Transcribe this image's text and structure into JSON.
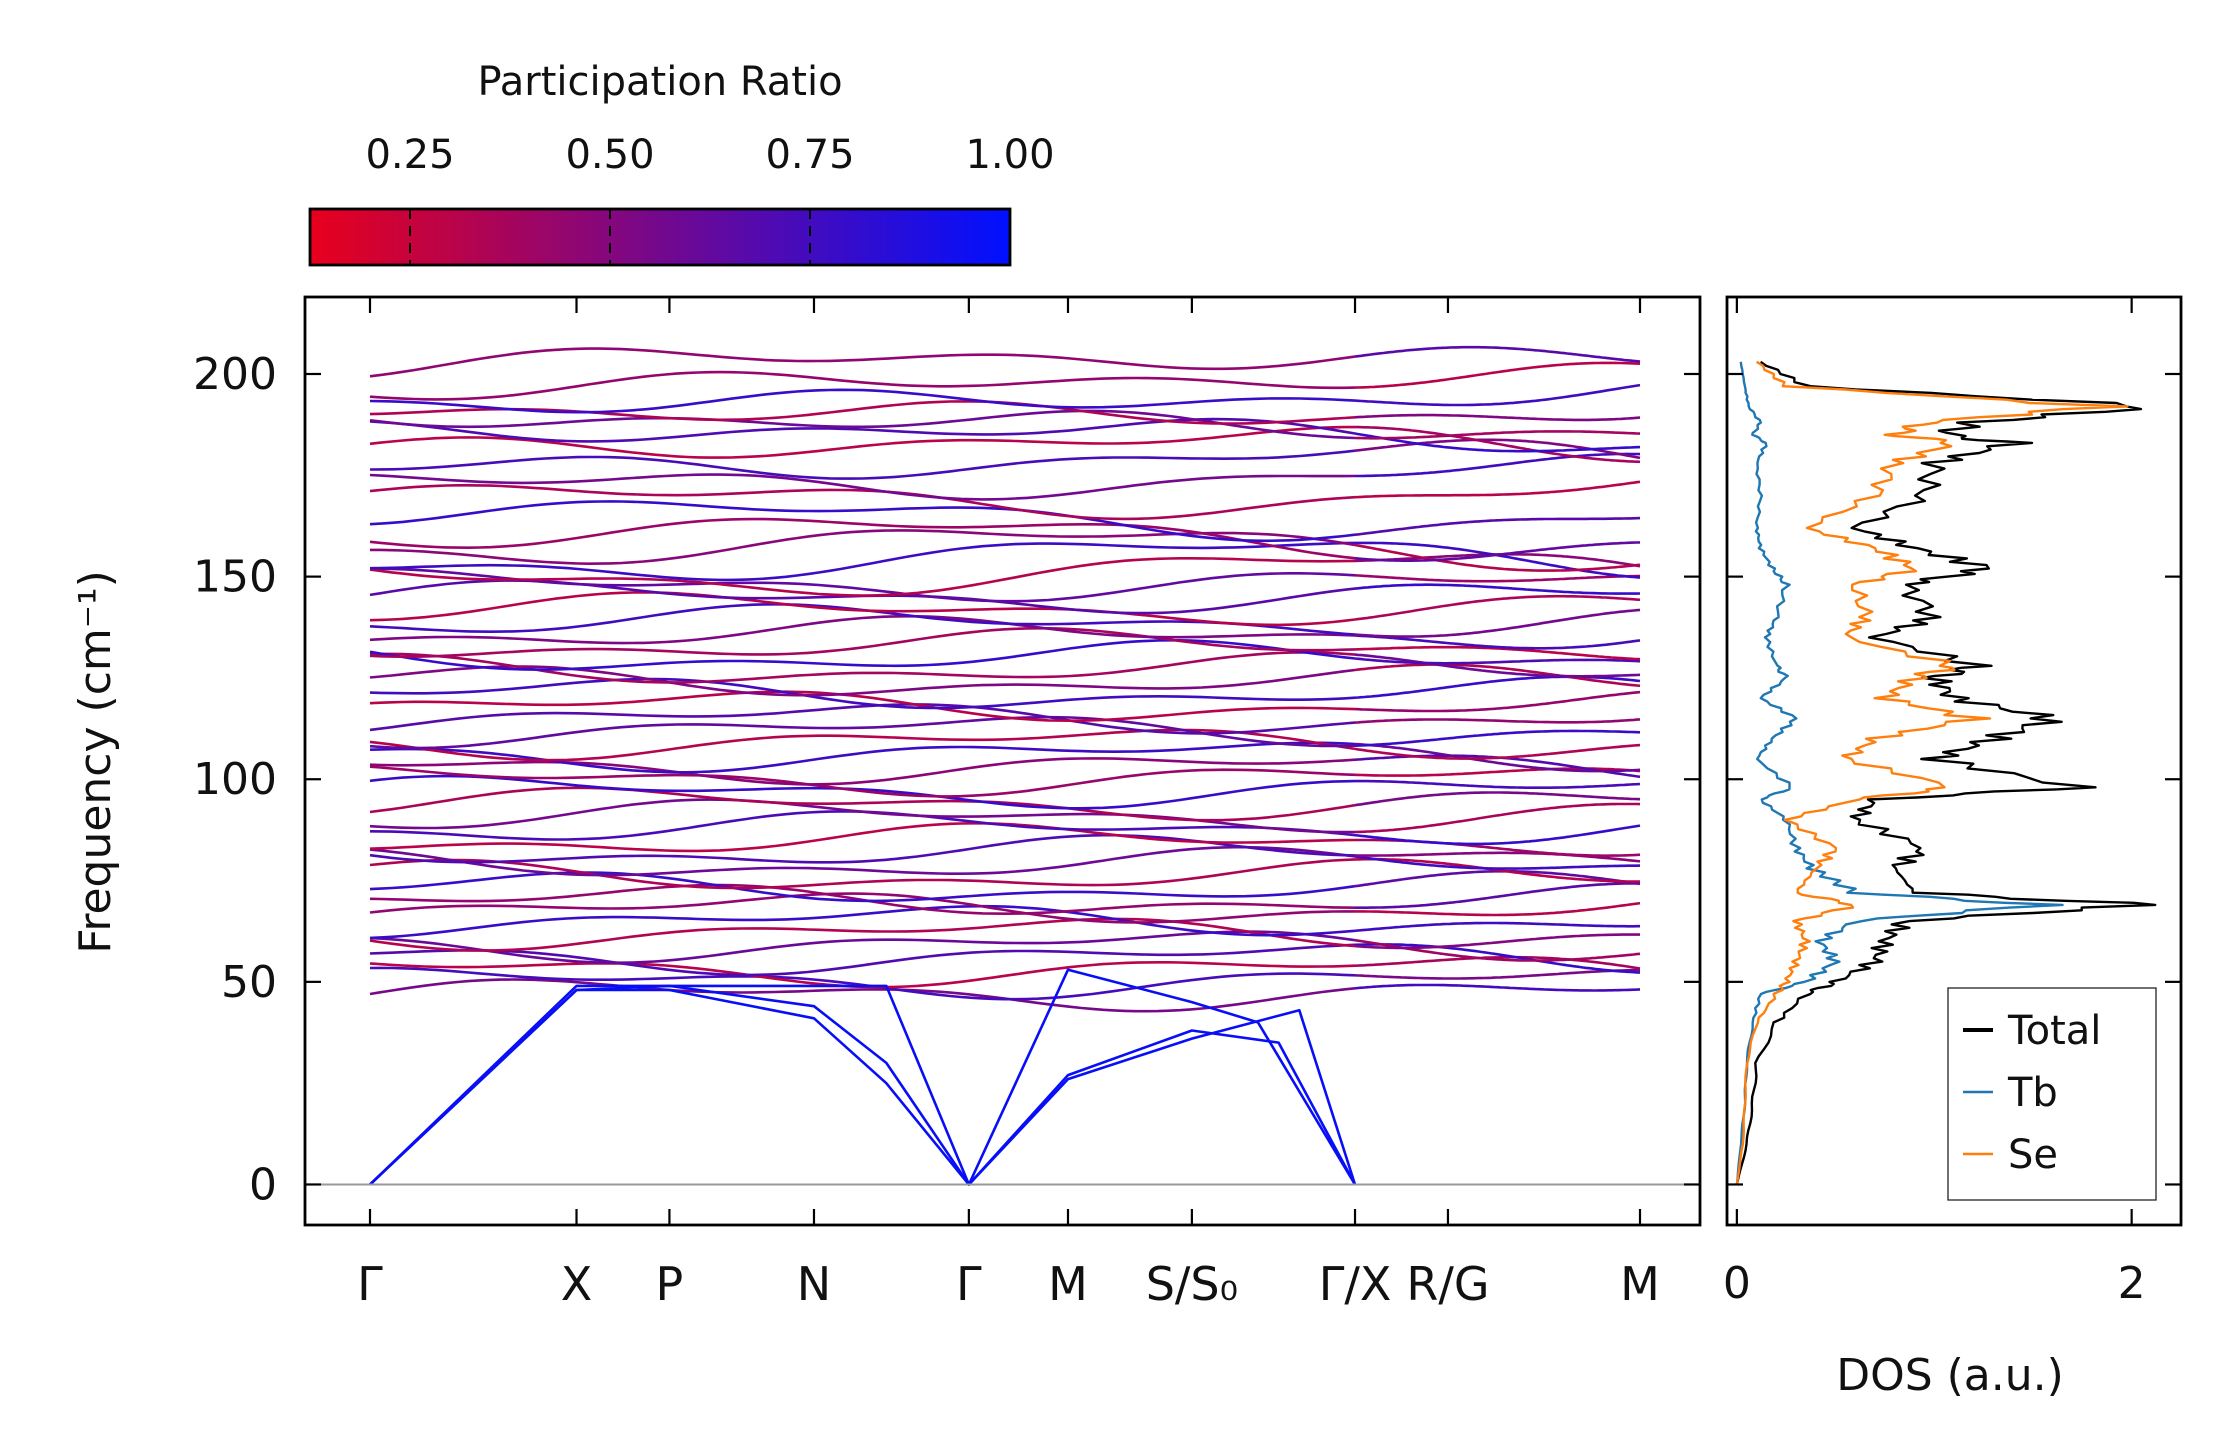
{
  "colorbar": {
    "title": "Participation Ratio",
    "ticks": [
      "0.25",
      "0.50",
      "0.75",
      "1.00"
    ],
    "tick_values": [
      0.25,
      0.5,
      0.75,
      1.0
    ],
    "range": [
      0.125,
      1.0
    ],
    "color_low": "#e8001c",
    "color_high": "#0010ff"
  },
  "chart_data": [
    {
      "type": "line",
      "name": "phonon-dispersion",
      "ylabel": "Frequency (cm⁻¹)",
      "ylim": [
        -10,
        219
      ],
      "yticks": [
        0,
        50,
        100,
        150,
        200
      ],
      "path_labels": [
        "Γ",
        "X",
        "P",
        "N",
        "Γ",
        "M",
        "S/S₀",
        "Γ/X",
        "R/G",
        "M"
      ],
      "path_positions": [
        0,
        1.0,
        1.45,
        2.15,
        2.9,
        3.38,
        3.98,
        4.77,
        5.22,
        6.15
      ],
      "acoustic_branches": [
        {
          "name": "acoustic-1",
          "x": [
            0,
            1.0,
            1.45,
            2.15,
            2.5,
            2.9,
            3.38,
            3.98,
            4.3,
            4.77
          ],
          "y": [
            0,
            48,
            49,
            44,
            30,
            0,
            53,
            45,
            40,
            0
          ]
        },
        {
          "name": "acoustic-2",
          "x": [
            0,
            1.0,
            1.45,
            2.15,
            2.5,
            2.9,
            3.38,
            3.98,
            4.4,
            4.77
          ],
          "y": [
            0,
            48,
            48,
            41,
            25,
            0,
            27,
            38,
            35,
            0
          ]
        },
        {
          "name": "acoustic-3",
          "x": [
            0,
            1.0,
            1.45,
            2.15,
            2.5,
            2.9,
            3.38,
            3.98,
            4.5,
            4.77
          ],
          "y": [
            0,
            49,
            49,
            49,
            49,
            0,
            26,
            36,
            43,
            0
          ]
        }
      ],
      "optical_band_levels": [
        47,
        50,
        53,
        56,
        59,
        62,
        65,
        68,
        70,
        73,
        76,
        79,
        82,
        85,
        88,
        91,
        94,
        97,
        100,
        103,
        106,
        109,
        112,
        115,
        118,
        121,
        124,
        127,
        130,
        133,
        136,
        139,
        142,
        145,
        148,
        151,
        154,
        157,
        160,
        165,
        170,
        174,
        178,
        182,
        185,
        188,
        191,
        194,
        198,
        203
      ]
    },
    {
      "type": "line",
      "name": "density-of-states",
      "xlabel": "DOS (a.u.)",
      "xlim": [
        -0.05,
        2.25
      ],
      "xticks": [
        0,
        2
      ],
      "ylim": [
        -10,
        219
      ],
      "legend_position": "lower-right",
      "series": [
        {
          "name": "Total",
          "color": "#000000",
          "freq": [
            0,
            10,
            20,
            30,
            40,
            47,
            50,
            55,
            60,
            65,
            69,
            72,
            78,
            83,
            90,
            95,
            98,
            105,
            110,
            115,
            120,
            125,
            128,
            135,
            140,
            148,
            152,
            157,
            162,
            170,
            178,
            183,
            185,
            188,
            192,
            197,
            203
          ],
          "dos": [
            0,
            0.05,
            0.08,
            0.1,
            0.2,
            0.35,
            0.5,
            0.7,
            0.75,
            0.85,
            2.08,
            0.9,
            0.8,
            0.95,
            0.6,
            0.7,
            1.72,
            1.0,
            1.3,
            1.6,
            1.1,
            1.0,
            1.22,
            0.7,
            1.0,
            0.85,
            1.28,
            0.9,
            0.6,
            0.95,
            1.0,
            1.4,
            1.05,
            1.2,
            2.12,
            0.35,
            0.12
          ]
        },
        {
          "name": "Tb",
          "color": "#1f77b4",
          "freq": [
            0,
            10,
            20,
            30,
            40,
            47,
            50,
            55,
            60,
            65,
            69,
            72,
            78,
            83,
            90,
            95,
            98,
            105,
            110,
            115,
            120,
            125,
            128,
            135,
            140,
            148,
            152,
            157,
            162,
            170,
            178,
            183,
            185,
            188,
            192,
            197,
            203
          ],
          "dos": [
            0,
            0.02,
            0.04,
            0.05,
            0.08,
            0.12,
            0.35,
            0.5,
            0.42,
            0.6,
            1.55,
            0.6,
            0.38,
            0.3,
            0.25,
            0.12,
            0.28,
            0.1,
            0.18,
            0.3,
            0.12,
            0.25,
            0.2,
            0.15,
            0.2,
            0.25,
            0.18,
            0.12,
            0.1,
            0.12,
            0.1,
            0.15,
            0.08,
            0.12,
            0.06,
            0.04,
            0.02
          ]
        },
        {
          "name": "Se",
          "color": "#ff7f0e",
          "freq": [
            0,
            10,
            20,
            30,
            40,
            47,
            50,
            55,
            60,
            65,
            69,
            72,
            78,
            83,
            90,
            95,
            98,
            105,
            110,
            115,
            120,
            125,
            128,
            135,
            140,
            148,
            152,
            157,
            162,
            170,
            178,
            183,
            185,
            188,
            192,
            197,
            203
          ],
          "dos": [
            0,
            0.03,
            0.04,
            0.05,
            0.1,
            0.2,
            0.25,
            0.3,
            0.35,
            0.3,
            0.6,
            0.3,
            0.4,
            0.5,
            0.25,
            0.6,
            1.1,
            0.55,
            0.7,
            1.2,
            0.75,
            0.9,
            1.1,
            0.55,
            0.65,
            0.6,
            0.9,
            0.7,
            0.35,
            0.7,
            0.8,
            1.1,
            0.8,
            0.95,
            1.85,
            0.25,
            0.1
          ]
        }
      ]
    }
  ]
}
